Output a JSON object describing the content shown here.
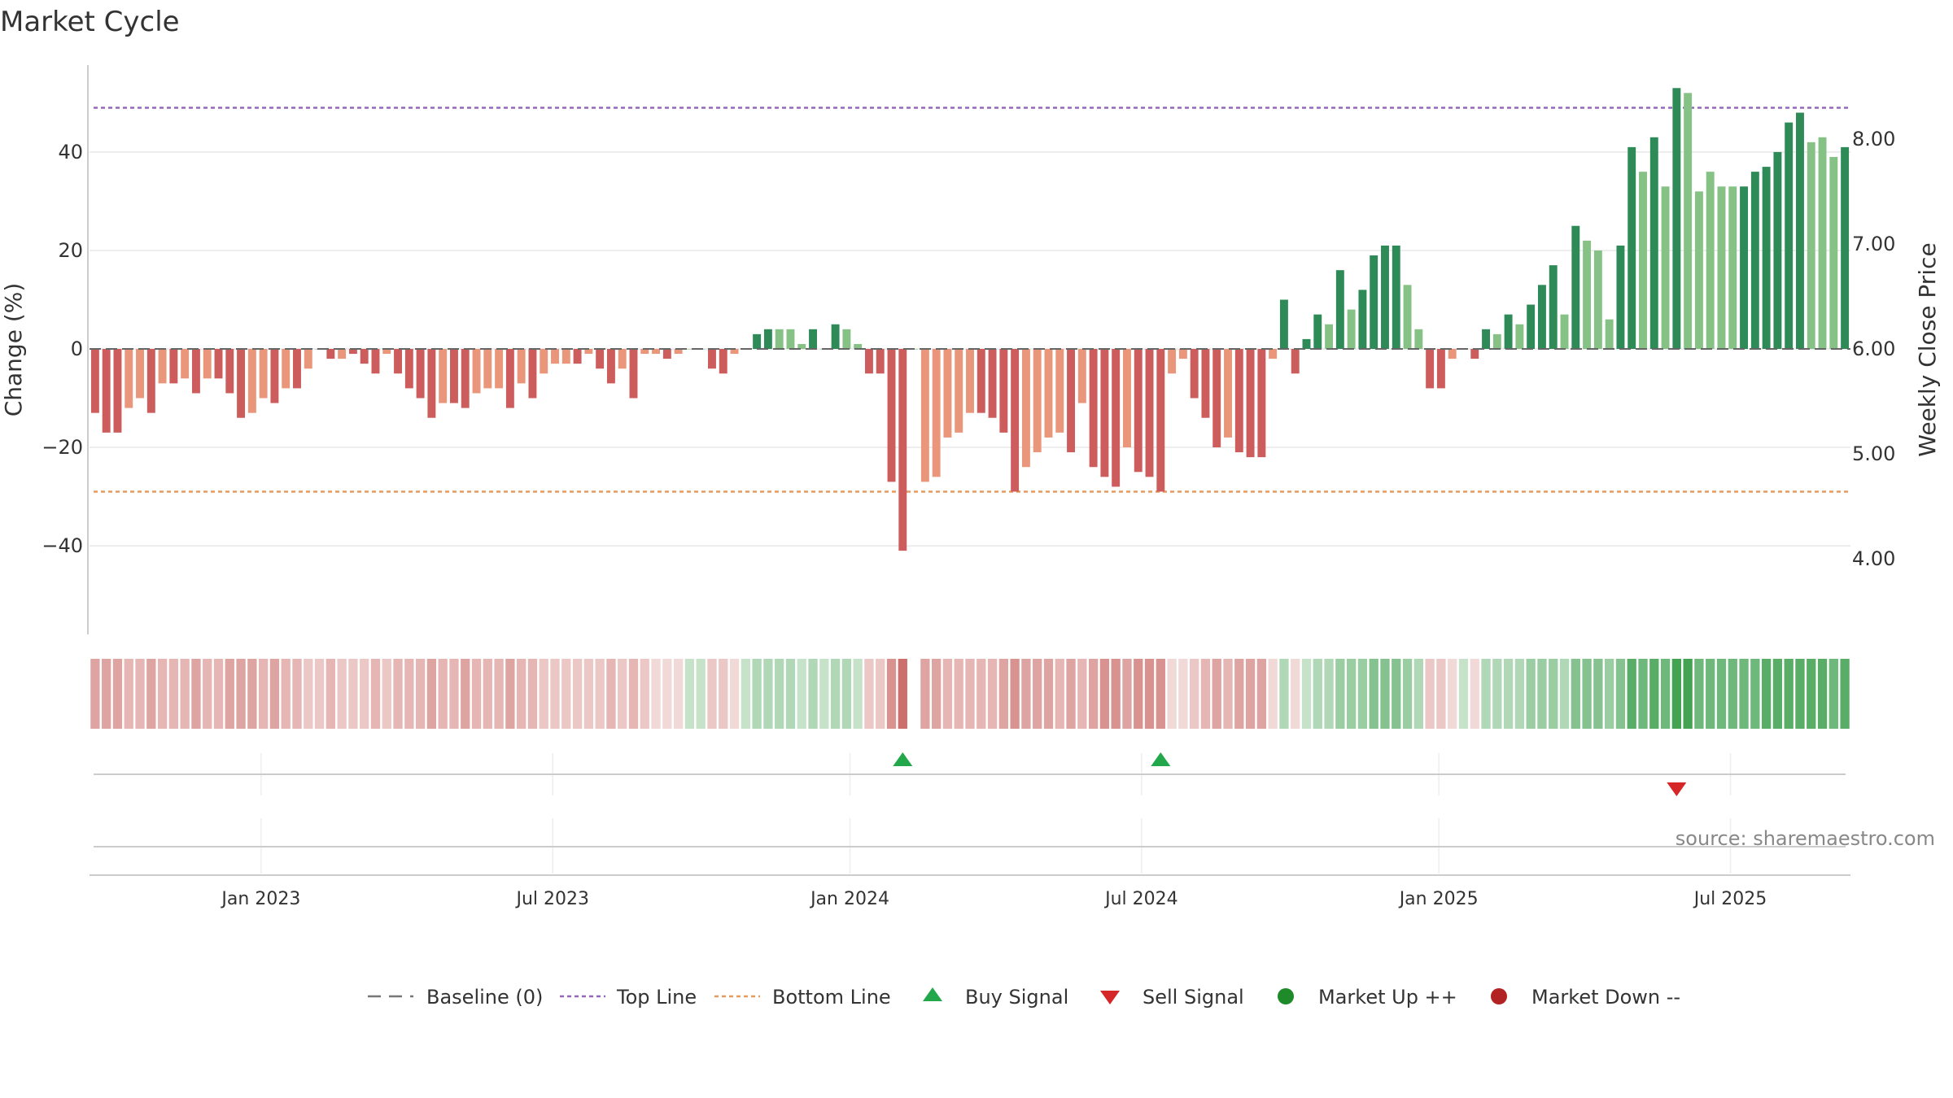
{
  "title": "Market Cycle",
  "source_text": "source: sharemaestro.com",
  "colors": {
    "up_dark": "#2e8b57",
    "up_light": "#86c286",
    "down_dark": "#cd5c5c",
    "down_light": "#e9967a",
    "top_line": "#9467bd",
    "bottom_line": "#e69a5c",
    "buy": "#22a84a",
    "sell": "#d62728",
    "market_up": "#1e8a2a",
    "market_down": "#b22222",
    "baseline": "#666666"
  },
  "chart_data": {
    "type": "bar",
    "title": "Market Cycle",
    "ylabel": "Change (%)",
    "y2label": "Weekly Close Price",
    "ylim": [
      -58,
      58
    ],
    "y_ticks": [
      "40",
      "20",
      "0",
      "−20",
      "−40"
    ],
    "y_tick_values": [
      40,
      20,
      0,
      -20,
      -40
    ],
    "y2_ticks": [
      "8.00",
      "7.00",
      "6.00",
      "5.00",
      "4.00"
    ],
    "y2_tick_values": [
      8,
      7,
      6,
      5,
      4
    ],
    "y2lim": [
      3.28,
      8.72
    ],
    "x_ticks": [
      "Jan 2023",
      "Jul 2023",
      "Jan 2024",
      "Jul 2024",
      "Jan 2025",
      "Jul 2025"
    ],
    "x_tick_weeks": [
      15.3,
      41.3,
      67.8,
      93.8,
      120.3,
      146.3
    ],
    "top_line": 49,
    "bottom_line": -29,
    "values": [
      -13,
      -17,
      -17,
      -12,
      -10,
      -13,
      -7,
      -7,
      -6,
      -9,
      -6,
      -6,
      -9,
      -14,
      -13,
      -10,
      -11,
      -8,
      -8,
      -4,
      0,
      -2,
      -2,
      -1,
      -3,
      -5,
      -1,
      -5,
      -8,
      -10,
      -14,
      -11,
      -11,
      -12,
      -9,
      -8,
      -8,
      -12,
      -7,
      -10,
      -5,
      -3,
      -3,
      -3,
      -1,
      -4,
      -7,
      -4,
      -10,
      -1,
      -1,
      -2,
      -1,
      0,
      0,
      -4,
      -5,
      -1,
      0,
      3,
      4,
      4,
      4,
      1,
      4,
      0,
      5,
      4,
      1,
      -5,
      -5,
      -27,
      -41,
      0,
      -27,
      -26,
      -18,
      -17,
      -13,
      -13,
      -14,
      -17,
      -29,
      -24,
      -21,
      -18,
      -17,
      -21,
      -11,
      -24,
      -26,
      -28,
      -20,
      -25,
      -26,
      -29,
      -5,
      -2,
      -10,
      -14,
      -20,
      -18,
      -21,
      -22,
      -22,
      -2,
      10,
      -5,
      2,
      7,
      5,
      16,
      8,
      12,
      19,
      21,
      21,
      13,
      4,
      -8,
      -8,
      -2,
      0,
      -2,
      4,
      3,
      7,
      5,
      9,
      13,
      17,
      7,
      25,
      22,
      20,
      6,
      21,
      41,
      36,
      43,
      33,
      53,
      52,
      32,
      36,
      33,
      33,
      33,
      36,
      37,
      40,
      46,
      48,
      42,
      43,
      39,
      41
    ],
    "shades": [
      "d",
      "d",
      "d",
      "l",
      "l",
      "d",
      "l",
      "d",
      "l",
      "d",
      "l",
      "d",
      "d",
      "d",
      "l",
      "l",
      "d",
      "l",
      "d",
      "l",
      "l",
      "d",
      "l",
      "d",
      "d",
      "d",
      "l",
      "d",
      "d",
      "d",
      "d",
      "l",
      "d",
      "d",
      "l",
      "l",
      "l",
      "d",
      "l",
      "d",
      "l",
      "l",
      "l",
      "d",
      "l",
      "d",
      "d",
      "l",
      "d",
      "l",
      "l",
      "d",
      "l",
      "l",
      "l",
      "d",
      "d",
      "l",
      "l",
      "d",
      "d",
      "l",
      "l",
      "l",
      "d",
      "l",
      "d",
      "l",
      "l",
      "d",
      "d",
      "d",
      "d",
      "l",
      "l",
      "l",
      "l",
      "l",
      "l",
      "d",
      "d",
      "d",
      "d",
      "l",
      "l",
      "l",
      "l",
      "d",
      "l",
      "d",
      "d",
      "d",
      "l",
      "d",
      "d",
      "d",
      "l",
      "l",
      "d",
      "d",
      "d",
      "l",
      "d",
      "d",
      "d",
      "l",
      "d",
      "d",
      "d",
      "d",
      "l",
      "d",
      "l",
      "d",
      "d",
      "d",
      "d",
      "l",
      "l",
      "d",
      "d",
      "l",
      "l",
      "d",
      "d",
      "l",
      "d",
      "l",
      "d",
      "d",
      "d",
      "l",
      "d",
      "l",
      "l",
      "l",
      "d",
      "d",
      "l",
      "d",
      "l",
      "d",
      "l",
      "l",
      "l",
      "l",
      "l",
      "d",
      "d",
      "d",
      "d",
      "d",
      "d",
      "l",
      "l",
      "l",
      "d"
    ],
    "cycle_strip": [
      -4,
      -4,
      -4,
      -3,
      -3,
      -4,
      -3,
      -3,
      -3,
      -4,
      -3,
      -3,
      -4,
      -4,
      -4,
      -3,
      -4,
      -3,
      -3,
      -2,
      -2,
      -3,
      -2,
      -2,
      -2,
      -3,
      -2,
      -3,
      -3,
      -3,
      -4,
      -3,
      -3,
      -4,
      -3,
      -3,
      -3,
      -4,
      -3,
      -3,
      -2,
      -2,
      -2,
      -2,
      -2,
      -2,
      -3,
      -2,
      -3,
      -2,
      -1,
      -1,
      -1,
      1,
      1,
      -2,
      -2,
      -1,
      1,
      2,
      2,
      2,
      2,
      1,
      2,
      1,
      2,
      2,
      1,
      -2,
      -2,
      -5,
      -7,
      0,
      -4,
      -4,
      -3,
      -3,
      -3,
      -3,
      -3,
      -4,
      -5,
      -4,
      -4,
      -4,
      -3,
      -4,
      -3,
      -4,
      -5,
      -5,
      -4,
      -5,
      -5,
      -5,
      -1,
      -1,
      -2,
      -3,
      -4,
      -3,
      -4,
      -4,
      -4,
      -1,
      2,
      -1,
      1,
      2,
      2,
      3,
      3,
      3,
      4,
      4,
      4,
      3,
      2,
      -2,
      -2,
      -1,
      1,
      -1,
      2,
      2,
      2,
      2,
      3,
      3,
      3,
      2,
      4,
      4,
      4,
      3,
      4,
      6,
      5,
      6,
      5,
      7,
      7,
      5,
      5,
      5,
      5,
      5,
      5,
      6,
      6,
      6,
      6,
      6,
      6,
      5,
      6
    ],
    "signals": [
      {
        "type": "buy",
        "week": 72
      },
      {
        "type": "buy",
        "week": 95
      },
      {
        "type": "sell",
        "week": 141
      }
    ],
    "legend": [
      {
        "label": "Baseline (0)",
        "key": "baseline"
      },
      {
        "label": "Top Line",
        "key": "top"
      },
      {
        "label": "Bottom Line",
        "key": "bottom"
      },
      {
        "label": "Buy Signal",
        "key": "buy"
      },
      {
        "label": "Sell Signal",
        "key": "sell"
      },
      {
        "label": "Market Up ++",
        "key": "up"
      },
      {
        "label": "Market Down --",
        "key": "down"
      }
    ]
  }
}
